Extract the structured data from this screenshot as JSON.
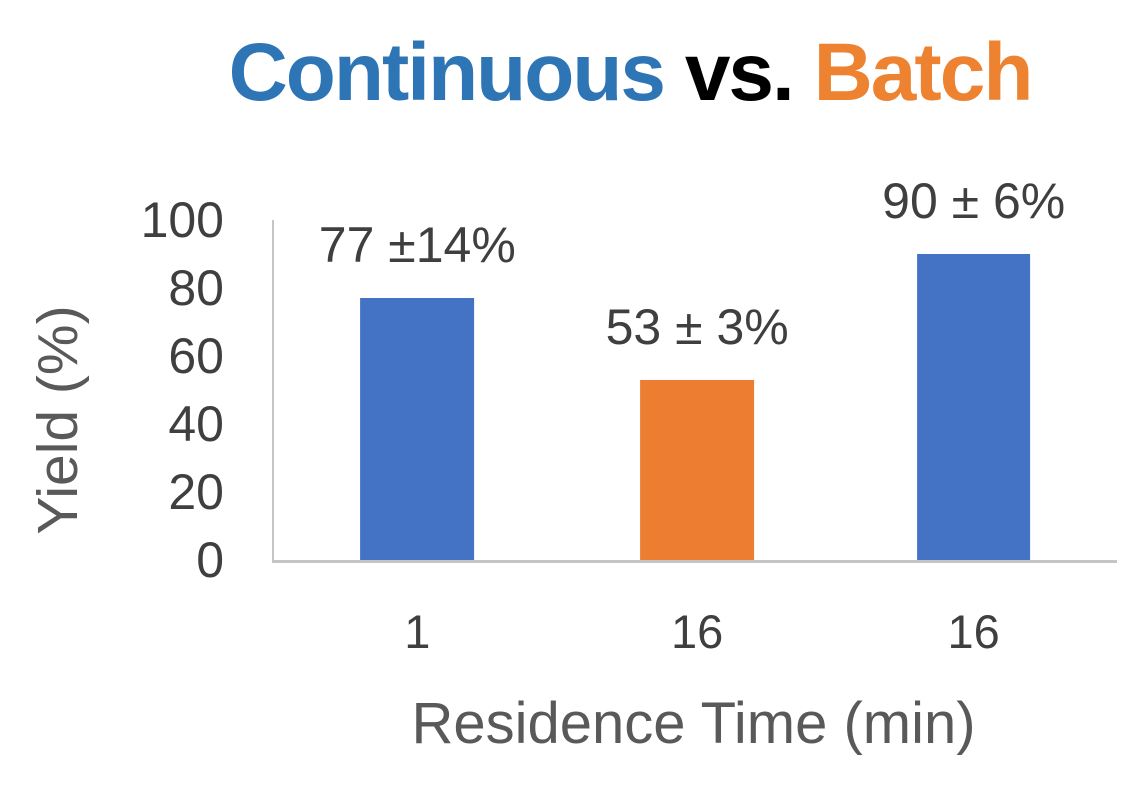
{
  "title": {
    "part_continuous": "Continuous",
    "part_vs": " vs. ",
    "part_batch": "Batch",
    "continuous_color": "#2E75B6",
    "vs_color": "#000000",
    "batch_color": "#ED8231"
  },
  "chart_data": {
    "type": "bar",
    "title": "Continuous vs. Batch",
    "xlabel": "Residence Time (min)",
    "ylabel": "Yield (%)",
    "ylim": [
      0,
      100
    ],
    "yticks": [
      0,
      20,
      40,
      60,
      80,
      100
    ],
    "grid": false,
    "legend": "none",
    "categories": [
      "1",
      "16",
      "16"
    ],
    "values": [
      77,
      53,
      90
    ],
    "errors": [
      14,
      3,
      6
    ],
    "data_labels": [
      "77 ±14%",
      "53 ± 3%",
      "90 ± 6%"
    ],
    "bar_colors": [
      "#4472C4",
      "#ED7D31",
      "#4472C4"
    ],
    "bar_centers_pct": [
      17.0,
      50.2,
      83.0
    ],
    "bar_width_pct": 13.5,
    "axis_line_color": "#c5c5c5",
    "tick_text_color": "#3f3f3f",
    "axis_title_color": "#595959"
  }
}
